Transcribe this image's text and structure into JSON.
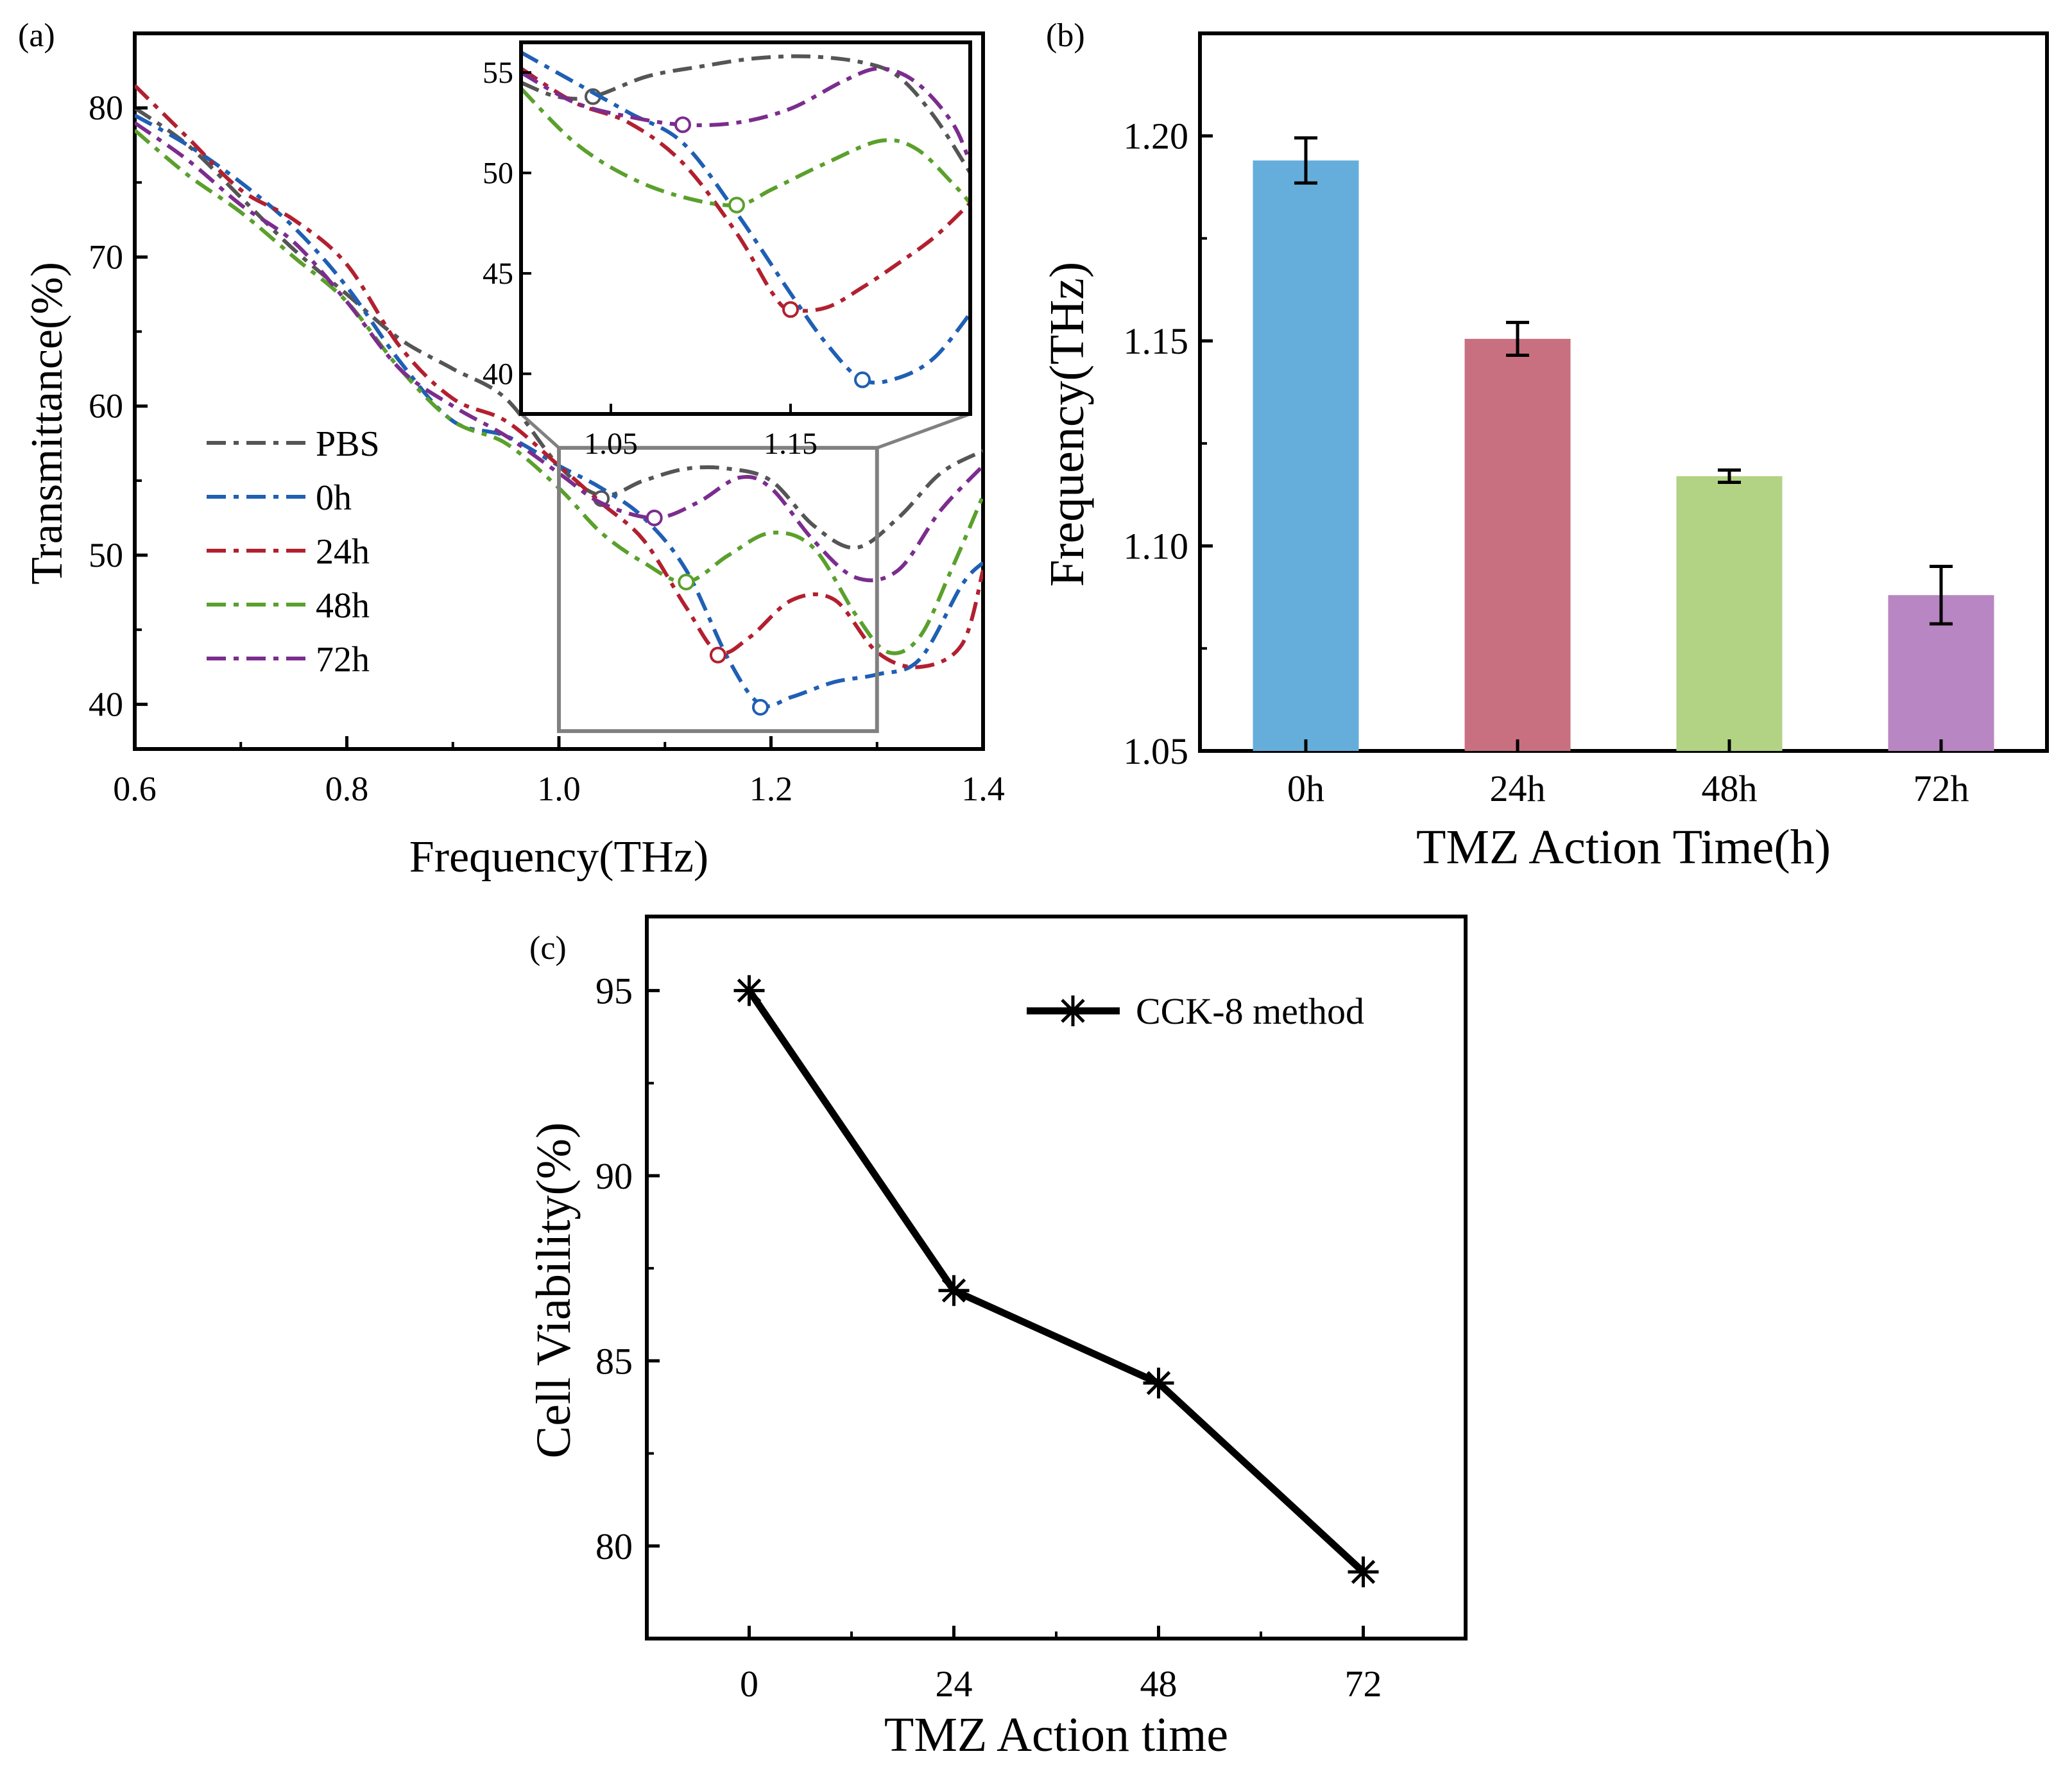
{
  "figure": {
    "panel_labels": [
      "(a)",
      "(b)",
      "(c)"
    ]
  },
  "chart_data": [
    {
      "panel": "(a)",
      "type": "line",
      "title": "",
      "xlabel": "Frequency(THz)",
      "ylabel": "Transmittance(%)",
      "xlim": [
        0.6,
        1.4
      ],
      "ylim": [
        37,
        85
      ],
      "xticks": [
        "0.6",
        "0.8",
        "1.0",
        "1.2",
        "1.4"
      ],
      "yticks": [
        "40",
        "50",
        "60",
        "70",
        "80"
      ],
      "xtick_values": [
        0.6,
        0.8,
        1.0,
        1.2,
        1.4
      ],
      "ytick_values": [
        40,
        50,
        60,
        70,
        80
      ],
      "grid": false,
      "legend_position": "left",
      "line_style": "dash-dot",
      "zoom_box": {
        "x": [
          1.0,
          1.3
        ],
        "y": [
          38.2,
          57.2
        ]
      },
      "series": [
        {
          "name": "PBS",
          "color": "#555555",
          "x": [
            0.6,
            0.65,
            0.7,
            0.75,
            0.8,
            0.85,
            0.9,
            0.95,
            1.0,
            1.04,
            1.08,
            1.12,
            1.16,
            1.2,
            1.24,
            1.28,
            1.32,
            1.36,
            1.4
          ],
          "y": [
            80,
            77.5,
            74,
            70.5,
            67.5,
            64.5,
            62.5,
            60.5,
            56,
            54,
            55,
            55.8,
            55.8,
            55,
            52,
            50.5,
            52.5,
            55.5,
            57
          ],
          "marker": {
            "x": 1.04,
            "y": 53.8
          }
        },
        {
          "name": "0h",
          "color": "#1f5fb4",
          "x": [
            0.6,
            0.65,
            0.7,
            0.75,
            0.8,
            0.85,
            0.9,
            0.95,
            1.0,
            1.04,
            1.08,
            1.12,
            1.16,
            1.19,
            1.22,
            1.26,
            1.3,
            1.34,
            1.38,
            1.4
          ],
          "y": [
            79.5,
            77.5,
            75,
            72,
            68,
            63,
            59,
            58,
            56,
            54.5,
            52.5,
            49,
            43,
            40,
            40.5,
            41.5,
            42,
            43,
            48,
            49.5
          ],
          "marker": {
            "x": 1.19,
            "y": 39.8
          }
        },
        {
          "name": "24h",
          "color": "#b22030",
          "x": [
            0.6,
            0.65,
            0.7,
            0.75,
            0.8,
            0.85,
            0.9,
            0.95,
            1.0,
            1.04,
            1.08,
            1.12,
            1.15,
            1.18,
            1.22,
            1.26,
            1.3,
            1.34,
            1.38,
            1.4
          ],
          "y": [
            81.5,
            78,
            74.5,
            72.5,
            69.5,
            64,
            60.5,
            59,
            56,
            53.5,
            51,
            46.5,
            43.5,
            44.5,
            47,
            47,
            43.5,
            42.5,
            44,
            49
          ],
          "marker": {
            "x": 1.15,
            "y": 43.3
          }
        },
        {
          "name": "48h",
          "color": "#5aa02c",
          "x": [
            0.6,
            0.65,
            0.7,
            0.75,
            0.8,
            0.85,
            0.9,
            0.95,
            1.0,
            1.04,
            1.08,
            1.12,
            1.16,
            1.2,
            1.24,
            1.28,
            1.31,
            1.34,
            1.37,
            1.4
          ],
          "y": [
            78.5,
            75.5,
            73,
            70,
            67,
            62.5,
            59,
            57.5,
            54.5,
            51.5,
            49.5,
            48.2,
            50,
            51.5,
            50.5,
            46,
            43.5,
            44.5,
            49,
            54
          ],
          "marker": {
            "x": 1.12,
            "y": 48.2
          }
        },
        {
          "name": "72h",
          "color": "#7b2d8e",
          "x": [
            0.6,
            0.65,
            0.7,
            0.75,
            0.8,
            0.85,
            0.9,
            0.95,
            1.0,
            1.04,
            1.09,
            1.13,
            1.17,
            1.2,
            1.24,
            1.28,
            1.32,
            1.36,
            1.4
          ],
          "y": [
            79,
            76.5,
            73.5,
            71,
            67,
            62.5,
            60,
            58,
            55.5,
            53.5,
            52.5,
            53.5,
            55.2,
            54.5,
            51,
            48.5,
            49,
            53,
            56
          ],
          "marker": {
            "x": 1.09,
            "y": 52.5
          }
        }
      ]
    },
    {
      "panel": "(a) inset",
      "type": "line",
      "title": "",
      "xlabel": "",
      "ylabel": "",
      "xlim": [
        1.0,
        1.25
      ],
      "ylim": [
        38,
        56.5
      ],
      "xticks": [
        "1.05",
        "1.15"
      ],
      "yticks": [
        "40",
        "45",
        "50",
        "55"
      ],
      "xtick_values": [
        1.05,
        1.15
      ],
      "ytick_values": [
        40,
        45,
        50,
        55
      ],
      "grid": false,
      "line_style": "dash-dot",
      "series": [
        {
          "name": "PBS",
          "color": "#555555",
          "x": [
            1.0,
            1.02,
            1.04,
            1.07,
            1.1,
            1.13,
            1.16,
            1.19,
            1.21,
            1.23,
            1.25
          ],
          "y": [
            54.5,
            53.8,
            53.8,
            54.8,
            55.3,
            55.7,
            55.8,
            55.5,
            54.8,
            52.8,
            50
          ],
          "marker": {
            "x": 1.04,
            "y": 53.8
          }
        },
        {
          "name": "0h",
          "color": "#1f5fb4",
          "x": [
            1.0,
            1.03,
            1.06,
            1.09,
            1.12,
            1.15,
            1.17,
            1.19,
            1.21,
            1.23,
            1.25
          ],
          "y": [
            56,
            54.5,
            53,
            51.5,
            48,
            44,
            41.5,
            39.7,
            39.8,
            40.8,
            43
          ],
          "marker": {
            "x": 1.19,
            "y": 39.7
          }
        },
        {
          "name": "24h",
          "color": "#b22030",
          "x": [
            1.0,
            1.03,
            1.06,
            1.09,
            1.12,
            1.14,
            1.15,
            1.17,
            1.19,
            1.21,
            1.23,
            1.25
          ],
          "y": [
            55.2,
            53.5,
            52.5,
            50.5,
            47,
            44,
            43.2,
            43.3,
            44.3,
            45.5,
            46.8,
            48.5
          ],
          "marker": {
            "x": 1.15,
            "y": 43.2
          }
        },
        {
          "name": "48h",
          "color": "#5aa02c",
          "x": [
            1.0,
            1.03,
            1.06,
            1.09,
            1.12,
            1.14,
            1.17,
            1.2,
            1.22,
            1.24,
            1.25
          ],
          "y": [
            54.2,
            51.5,
            49.8,
            48.8,
            48.4,
            49.2,
            50.5,
            51.6,
            51.2,
            49.5,
            48.5
          ],
          "marker": {
            "x": 1.12,
            "y": 48.4
          }
        },
        {
          "name": "72h",
          "color": "#7b2d8e",
          "x": [
            1.0,
            1.03,
            1.06,
            1.09,
            1.12,
            1.15,
            1.18,
            1.2,
            1.22,
            1.24,
            1.25
          ],
          "y": [
            55,
            53.5,
            52.8,
            52.4,
            52.5,
            53.2,
            54.6,
            55.2,
            54.5,
            52.5,
            50.5
          ],
          "marker": {
            "x": 1.09,
            "y": 52.4
          }
        }
      ]
    },
    {
      "panel": "(b)",
      "type": "bar",
      "title": "",
      "xlabel": "TMZ Action Time(h)",
      "ylabel": "Frequency(THz)",
      "categories": [
        "0h",
        "24h",
        "48h",
        "72h"
      ],
      "values": [
        1.194,
        1.1505,
        1.117,
        1.088
      ],
      "errors": [
        0.0055,
        0.004,
        0.0015,
        0.007
      ],
      "colors": [
        "#65aedc",
        "#c87080",
        "#b2d384",
        "#b886c2"
      ],
      "ylim": [
        1.05,
        1.225
      ],
      "yticks": [
        "1.05",
        "1.10",
        "1.15",
        "1.20"
      ],
      "ytick_values": [
        1.05,
        1.1,
        1.15,
        1.2
      ],
      "grid": false
    },
    {
      "panel": "(c)",
      "type": "line",
      "title": "",
      "xlabel": "TMZ Action time",
      "ylabel": "Cell Viability(%)",
      "legend_position": "top-right",
      "xlim": [
        -12,
        84
      ],
      "ylim": [
        77.5,
        97
      ],
      "xticks": [
        "0",
        "24",
        "48",
        "72"
      ],
      "xtick_values": [
        0,
        24,
        48,
        72
      ],
      "yticks": [
        "80",
        "85",
        "90",
        "95"
      ],
      "ytick_values": [
        80,
        85,
        90,
        95
      ],
      "grid": false,
      "series": [
        {
          "name": "CCK-8 method",
          "color": "#000000",
          "x": [
            0,
            24,
            48,
            72
          ],
          "y": [
            95,
            86.9,
            84.4,
            79.3
          ]
        }
      ]
    }
  ]
}
